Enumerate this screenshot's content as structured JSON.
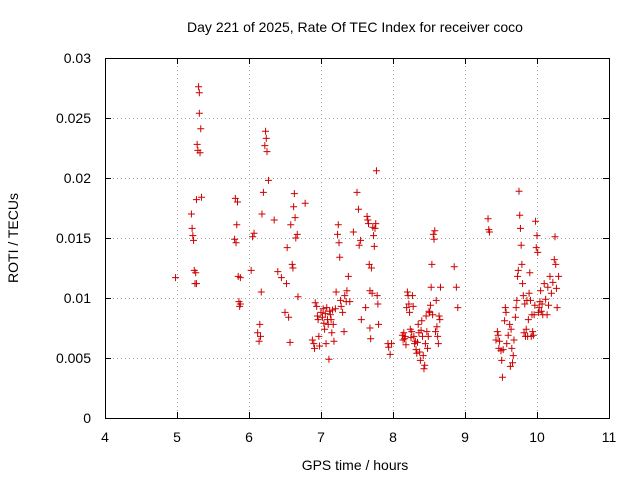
{
  "chart_data": {
    "type": "scatter",
    "title": "Day 221 of 2025, Rate Of TEC Index for receiver coco",
    "xlabel": "GPS time / hours",
    "ylabel": "ROTI / TECUs",
    "xlim": [
      4,
      11
    ],
    "ylim": [
      0,
      0.03
    ],
    "xticks": [
      4,
      5,
      6,
      7,
      8,
      9,
      10,
      11
    ],
    "xtick_labels": [
      "4",
      "5",
      "6",
      "7",
      "8",
      "9",
      "10",
      "11"
    ],
    "yticks": [
      0,
      0.005,
      0.01,
      0.015,
      0.02,
      0.025,
      0.03
    ],
    "ytick_labels": [
      "0",
      "0.005",
      "0.01",
      "0.015",
      "0.02",
      "0.025",
      "0.03"
    ],
    "grid": true,
    "marker": "+",
    "color": "#cc0000",
    "series": [
      {
        "name": "ROTI",
        "points": [
          [
            4.98,
            0.0117
          ],
          [
            5.2,
            0.017
          ],
          [
            5.21,
            0.0158
          ],
          [
            5.22,
            0.0152
          ],
          [
            5.23,
            0.0148
          ],
          [
            5.24,
            0.0123
          ],
          [
            5.25,
            0.0112
          ],
          [
            5.26,
            0.0121
          ],
          [
            5.27,
            0.0112
          ],
          [
            5.27,
            0.0182
          ],
          [
            5.28,
            0.0228
          ],
          [
            5.29,
            0.0223
          ],
          [
            5.3,
            0.0276
          ],
          [
            5.31,
            0.0271
          ],
          [
            5.31,
            0.0254
          ],
          [
            5.32,
            0.0221
          ],
          [
            5.33,
            0.0241
          ],
          [
            5.34,
            0.0184
          ],
          [
            5.8,
            0.0149
          ],
          [
            5.81,
            0.0183
          ],
          [
            5.82,
            0.0146
          ],
          [
            5.83,
            0.0161
          ],
          [
            5.84,
            0.018
          ],
          [
            5.85,
            0.0118
          ],
          [
            5.86,
            0.0097
          ],
          [
            5.87,
            0.0093
          ],
          [
            5.88,
            0.0117
          ],
          [
            5.88,
            0.0095
          ],
          [
            6.03,
            0.0123
          ],
          [
            6.05,
            0.0151
          ],
          [
            6.07,
            0.0154
          ],
          [
            6.12,
            0.0071
          ],
          [
            6.14,
            0.0064
          ],
          [
            6.15,
            0.0078
          ],
          [
            6.16,
            0.0068
          ],
          [
            6.17,
            0.0105
          ],
          [
            6.18,
            0.017
          ],
          [
            6.2,
            0.0188
          ],
          [
            6.22,
            0.0227
          ],
          [
            6.23,
            0.0239
          ],
          [
            6.24,
            0.0233
          ],
          [
            6.25,
            0.0222
          ],
          [
            6.27,
            0.0198
          ],
          [
            6.35,
            0.0165
          ],
          [
            6.4,
            0.0122
          ],
          [
            6.45,
            0.0117
          ],
          [
            6.5,
            0.0088
          ],
          [
            6.52,
            0.0112
          ],
          [
            6.53,
            0.0142
          ],
          [
            6.55,
            0.0084
          ],
          [
            6.57,
            0.0063
          ],
          [
            6.58,
            0.0161
          ],
          [
            6.6,
            0.0128
          ],
          [
            6.61,
            0.0125
          ],
          [
            6.62,
            0.0176
          ],
          [
            6.63,
            0.0187
          ],
          [
            6.64,
            0.0167
          ],
          [
            6.65,
            0.015
          ],
          [
            6.67,
            0.0153
          ],
          [
            6.68,
            0.0101
          ],
          [
            6.78,
            0.0179
          ],
          [
            6.88,
            0.0065
          ],
          [
            6.9,
            0.0062
          ],
          [
            6.91,
            0.0058
          ],
          [
            6.92,
            0.0096
          ],
          [
            6.94,
            0.0093
          ],
          [
            6.95,
            0.0085
          ],
          [
            6.96,
            0.0082
          ],
          [
            6.97,
            0.0068
          ],
          [
            6.98,
            0.006
          ],
          [
            7.0,
            0.0088
          ],
          [
            7.02,
            0.0084
          ],
          [
            7.03,
            0.0091
          ],
          [
            7.04,
            0.0079
          ],
          [
            7.05,
            0.0074
          ],
          [
            7.06,
            0.0087
          ],
          [
            7.07,
            0.0062
          ],
          [
            7.08,
            0.0092
          ],
          [
            7.09,
            0.0082
          ],
          [
            7.1,
            0.0078
          ],
          [
            7.11,
            0.0049
          ],
          [
            7.12,
            0.0089
          ],
          [
            7.13,
            0.0086
          ],
          [
            7.14,
            0.0082
          ],
          [
            7.15,
            0.0071
          ],
          [
            7.16,
            0.009
          ],
          [
            7.17,
            0.0078
          ],
          [
            7.18,
            0.0064
          ],
          [
            7.2,
            0.0091
          ],
          [
            7.21,
            0.0105
          ],
          [
            7.23,
            0.0153
          ],
          [
            7.24,
            0.0161
          ],
          [
            7.25,
            0.0146
          ],
          [
            7.26,
            0.0134
          ],
          [
            7.27,
            0.0098
          ],
          [
            7.28,
            0.0093
          ],
          [
            7.3,
            0.0088
          ],
          [
            7.32,
            0.0072
          ],
          [
            7.33,
            0.0102
          ],
          [
            7.35,
            0.0097
          ],
          [
            7.36,
            0.0106
          ],
          [
            7.38,
            0.0118
          ],
          [
            7.4,
            0.0097
          ],
          [
            7.45,
            0.0155
          ],
          [
            7.5,
            0.0188
          ],
          [
            7.52,
            0.0174
          ],
          [
            7.53,
            0.0144
          ],
          [
            7.55,
            0.0148
          ],
          [
            7.56,
            0.0082
          ],
          [
            7.62,
            0.0092
          ],
          [
            7.64,
            0.0168
          ],
          [
            7.65,
            0.0165
          ],
          [
            7.66,
            0.0162
          ],
          [
            7.67,
            0.0128
          ],
          [
            7.68,
            0.0106
          ],
          [
            7.68,
            0.0075
          ],
          [
            7.69,
            0.0066
          ],
          [
            7.7,
            0.0125
          ],
          [
            7.71,
            0.0104
          ],
          [
            7.72,
            0.0159
          ],
          [
            7.73,
            0.0152
          ],
          [
            7.74,
            0.0143
          ],
          [
            7.75,
            0.0158
          ],
          [
            7.76,
            0.0162
          ],
          [
            7.77,
            0.0206
          ],
          [
            7.78,
            0.0102
          ],
          [
            7.79,
            0.0095
          ],
          [
            7.8,
            0.0078
          ],
          [
            7.93,
            0.0062
          ],
          [
            7.94,
            0.0059
          ],
          [
            7.96,
            0.0053
          ],
          [
            7.98,
            0.0062
          ],
          [
            8.13,
            0.0069
          ],
          [
            8.14,
            0.0065
          ],
          [
            8.15,
            0.0071
          ],
          [
            8.16,
            0.0066
          ],
          [
            8.17,
            0.0068
          ],
          [
            8.18,
            0.0061
          ],
          [
            8.19,
            0.0092
          ],
          [
            8.2,
            0.0105
          ],
          [
            8.21,
            0.0102
          ],
          [
            8.22,
            0.0095
          ],
          [
            8.23,
            0.0088
          ],
          [
            8.24,
            0.0074
          ],
          [
            8.25,
            0.0067
          ],
          [
            8.26,
            0.0072
          ],
          [
            8.27,
            0.0102
          ],
          [
            8.28,
            0.0093
          ],
          [
            8.29,
            0.0068
          ],
          [
            8.3,
            0.0062
          ],
          [
            8.31,
            0.0064
          ],
          [
            8.32,
            0.0057
          ],
          [
            8.33,
            0.0054
          ],
          [
            8.34,
            0.0063
          ],
          [
            8.35,
            0.0078
          ],
          [
            8.36,
            0.0071
          ],
          [
            8.37,
            0.0055
          ],
          [
            8.38,
            0.0048
          ],
          [
            8.39,
            0.0073
          ],
          [
            8.4,
            0.0081
          ],
          [
            8.41,
            0.0068
          ],
          [
            8.42,
            0.0052
          ],
          [
            8.43,
            0.0041
          ],
          [
            8.44,
            0.0044
          ],
          [
            8.45,
            0.0062
          ],
          [
            8.46,
            0.0085
          ],
          [
            8.47,
            0.0072
          ],
          [
            8.48,
            0.0058
          ],
          [
            8.49,
            0.0068
          ],
          [
            8.5,
            0.0089
          ],
          [
            8.51,
            0.0088
          ],
          [
            8.52,
            0.0094
          ],
          [
            8.53,
            0.0109
          ],
          [
            8.54,
            0.0128
          ],
          [
            8.55,
            0.0086
          ],
          [
            8.56,
            0.0153
          ],
          [
            8.57,
            0.0149
          ],
          [
            8.58,
            0.0156
          ],
          [
            8.59,
            0.0072
          ],
          [
            8.6,
            0.0098
          ],
          [
            8.61,
            0.0076
          ],
          [
            8.62,
            0.0068
          ],
          [
            8.63,
            0.0062
          ],
          [
            8.64,
            0.0085
          ],
          [
            8.65,
            0.0082
          ],
          [
            8.66,
            0.0109
          ],
          [
            8.85,
            0.0126
          ],
          [
            8.88,
            0.0109
          ],
          [
            8.9,
            0.0092
          ],
          [
            9.32,
            0.0166
          ],
          [
            9.33,
            0.0157
          ],
          [
            9.34,
            0.0155
          ],
          [
            9.43,
            0.0065
          ],
          [
            9.45,
            0.0072
          ],
          [
            9.46,
            0.0069
          ],
          [
            9.47,
            0.0058
          ],
          [
            9.48,
            0.0064
          ],
          [
            9.5,
            0.0056
          ],
          [
            9.51,
            0.0048
          ],
          [
            9.52,
            0.0034
          ],
          [
            9.53,
            0.0057
          ],
          [
            9.55,
            0.0081
          ],
          [
            9.56,
            0.0092
          ],
          [
            9.57,
            0.0088
          ],
          [
            9.58,
            0.0062
          ],
          [
            9.6,
            0.0069
          ],
          [
            9.62,
            0.0078
          ],
          [
            9.63,
            0.0043
          ],
          [
            9.64,
            0.0074
          ],
          [
            9.65,
            0.0058
          ],
          [
            9.66,
            0.0046
          ],
          [
            9.67,
            0.0052
          ],
          [
            9.68,
            0.0065
          ],
          [
            9.7,
            0.0084
          ],
          [
            9.71,
            0.0092
          ],
          [
            9.72,
            0.0098
          ],
          [
            9.73,
            0.0118
          ],
          [
            9.74,
            0.0123
          ],
          [
            9.75,
            0.0189
          ],
          [
            9.76,
            0.0169
          ],
          [
            9.77,
            0.0158
          ],
          [
            9.78,
            0.0144
          ],
          [
            9.79,
            0.0128
          ],
          [
            9.8,
            0.0112
          ],
          [
            9.81,
            0.0102
          ],
          [
            9.82,
            0.0071
          ],
          [
            9.83,
            0.0095
          ],
          [
            9.84,
            0.0068
          ],
          [
            9.85,
            0.0074
          ],
          [
            9.86,
            0.0098
          ],
          [
            9.87,
            0.0068
          ],
          [
            9.88,
            0.0082
          ],
          [
            9.89,
            0.0104
          ],
          [
            9.9,
            0.0121
          ],
          [
            9.91,
            0.0098
          ],
          [
            9.92,
            0.0068
          ],
          [
            9.93,
            0.0086
          ],
          [
            9.94,
            0.0072
          ],
          [
            9.95,
            0.0069
          ],
          [
            9.96,
            0.0086
          ],
          [
            9.97,
            0.0094
          ],
          [
            9.98,
            0.0164
          ],
          [
            9.99,
            0.0142
          ],
          [
            10.0,
            0.0152
          ],
          [
            10.01,
            0.0138
          ],
          [
            10.02,
            0.0088
          ],
          [
            10.03,
            0.0092
          ],
          [
            10.04,
            0.0097
          ],
          [
            10.05,
            0.0106
          ],
          [
            10.06,
            0.0089
          ],
          [
            10.07,
            0.0095
          ],
          [
            10.08,
            0.0086
          ],
          [
            10.1,
            0.0112
          ],
          [
            10.12,
            0.0099
          ],
          [
            10.14,
            0.0086
          ],
          [
            10.15,
            0.0109
          ],
          [
            10.16,
            0.0094
          ],
          [
            10.18,
            0.0118
          ],
          [
            10.2,
            0.0104
          ],
          [
            10.22,
            0.0113
          ],
          [
            10.24,
            0.0132
          ],
          [
            10.25,
            0.0151
          ],
          [
            10.26,
            0.0128
          ],
          [
            10.27,
            0.0108
          ],
          [
            10.28,
            0.0092
          ],
          [
            10.3,
            0.0118
          ]
        ]
      }
    ]
  }
}
